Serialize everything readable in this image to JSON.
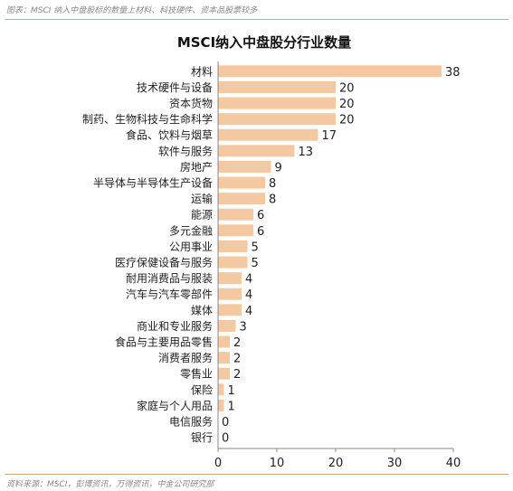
{
  "caption": "图表：MSCI 纳入中盘股标的数量上材料、科技硬件、资本品股票较多",
  "source": "资料来源：MSCI，彭博资讯，万得资讯，中金公司研究部",
  "colors": {
    "bar": "#f4c9a2",
    "axis": "#888888",
    "text": "#222222",
    "rule": "#c9a980"
  },
  "chart_data": {
    "type": "bar",
    "orientation": "horizontal",
    "title": "MSCI纳入中盘股分行业数量",
    "categories": [
      "材料",
      "技术硬件与设备",
      "资本货物",
      "制药、生物科技与生命科学",
      "食品、饮料与烟草",
      "软件与服务",
      "房地产",
      "半导体与半导体生产设备",
      "运输",
      "能源",
      "多元金融",
      "公用事业",
      "医疗保健设备与服务",
      "耐用消费品与服装",
      "汽车与汽车零部件",
      "媒体",
      "商业和专业服务",
      "食品与主要用品零售",
      "消费者服务",
      "零售业",
      "保险",
      "家庭与个人用品",
      "电信服务",
      "银行"
    ],
    "values": [
      38,
      20,
      20,
      20,
      17,
      13,
      9,
      8,
      8,
      6,
      6,
      5,
      5,
      4,
      4,
      4,
      3,
      2,
      2,
      2,
      1,
      1,
      0,
      0
    ],
    "xlim": [
      0,
      40
    ],
    "xticks": [
      0,
      10,
      20,
      30,
      40
    ],
    "xlabel": "",
    "ylabel": "",
    "grid": false,
    "legend": "none"
  }
}
